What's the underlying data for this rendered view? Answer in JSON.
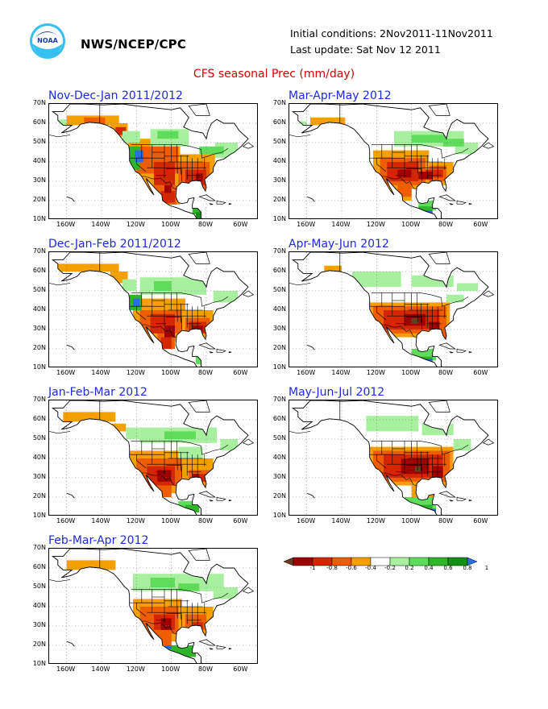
{
  "header": {
    "agency": "NWS/NCEP/CPC",
    "initial_conditions": "Initial conditions: 2Nov2011-11Nov2011",
    "last_update": "Last update: Sat Nov 12 2011",
    "title": "CFS seasonal Prec (mm/day)",
    "logo_icon": "noaa-logo-icon"
  },
  "axes": {
    "lat_labels": [
      "70N",
      "60N",
      "50N",
      "40N",
      "30N",
      "20N",
      "10N"
    ],
    "lon_labels": [
      "160W",
      "140W",
      "120W",
      "100W",
      "80W",
      "60W"
    ]
  },
  "panels": [
    {
      "title": "Nov-Dec-Jan 2011/2012",
      "pattern": "ndj"
    },
    {
      "title": "Mar-Apr-May 2012",
      "pattern": "mam"
    },
    {
      "title": "Dec-Jan-Feb 2011/2012",
      "pattern": "djf"
    },
    {
      "title": "Apr-May-Jun 2012",
      "pattern": "amj"
    },
    {
      "title": "Jan-Feb-Mar 2012",
      "pattern": "jfm"
    },
    {
      "title": "May-Jun-Jul 2012",
      "pattern": "mjj"
    },
    {
      "title": "Feb-Mar-Apr 2012",
      "pattern": "fma"
    }
  ],
  "legend": {
    "labels": [
      "-1",
      "-0.8",
      "-0.6",
      "-0.4",
      "-0.2",
      "0.2",
      "0.4",
      "0.6",
      "0.8",
      "1"
    ],
    "colors": [
      "#6b3a1f",
      "#a00000",
      "#d42600",
      "#ee5d00",
      "#f5a000",
      "#ffffff",
      "#a8f0a0",
      "#5fdc5a",
      "#2fb42a",
      "#158f15",
      "#2a6fe0"
    ]
  },
  "colors": {
    "title_red": "#d40000",
    "panel_title_blue": "#1d2be0"
  }
}
